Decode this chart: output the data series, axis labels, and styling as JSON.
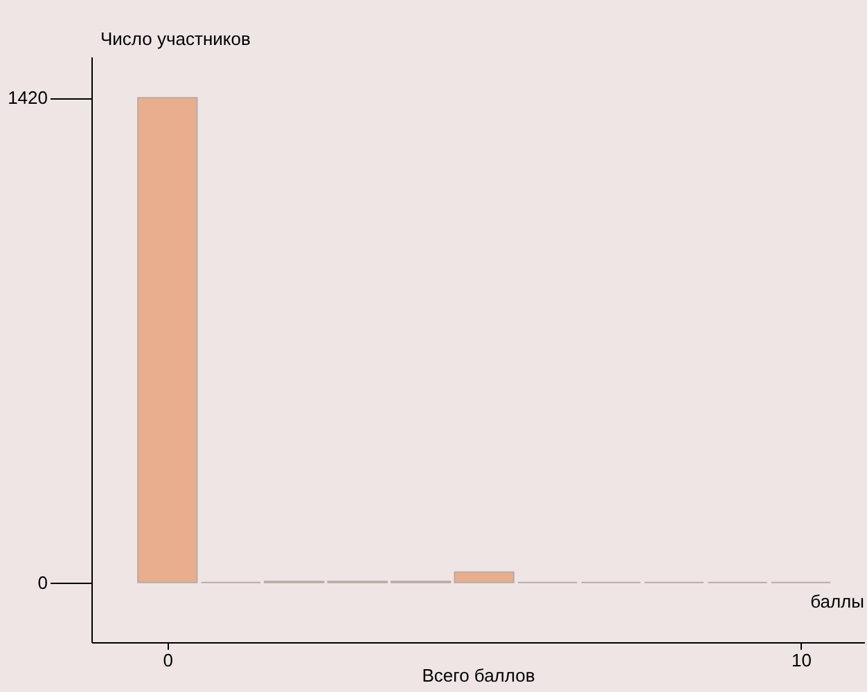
{
  "chart_data": {
    "type": "bar",
    "ylabel": "Число участников",
    "xlabel": "Всего баллов",
    "annotations": [
      "баллы"
    ],
    "x": [
      0,
      1,
      2,
      3,
      4,
      5,
      6,
      7,
      8,
      9,
      10
    ],
    "values": [
      1420,
      0,
      3,
      3,
      3,
      30,
      0,
      0,
      0,
      0,
      0
    ],
    "colors": [
      "#e8ae8e",
      "#c3b4ad",
      "#c3b4ad",
      "#c3b4ad",
      "#c3b4ad",
      "#e8ae8e",
      "#c3b4ad",
      "#c3b4ad",
      "#c3b4ad",
      "#c3b4ad",
      "#c3b4ad"
    ],
    "xlim": [
      -1.2,
      11
    ],
    "xticks": [
      0,
      10
    ],
    "ylim": [
      -175,
      1540
    ],
    "yticks": [
      0,
      1420
    ],
    "grid": false
  }
}
